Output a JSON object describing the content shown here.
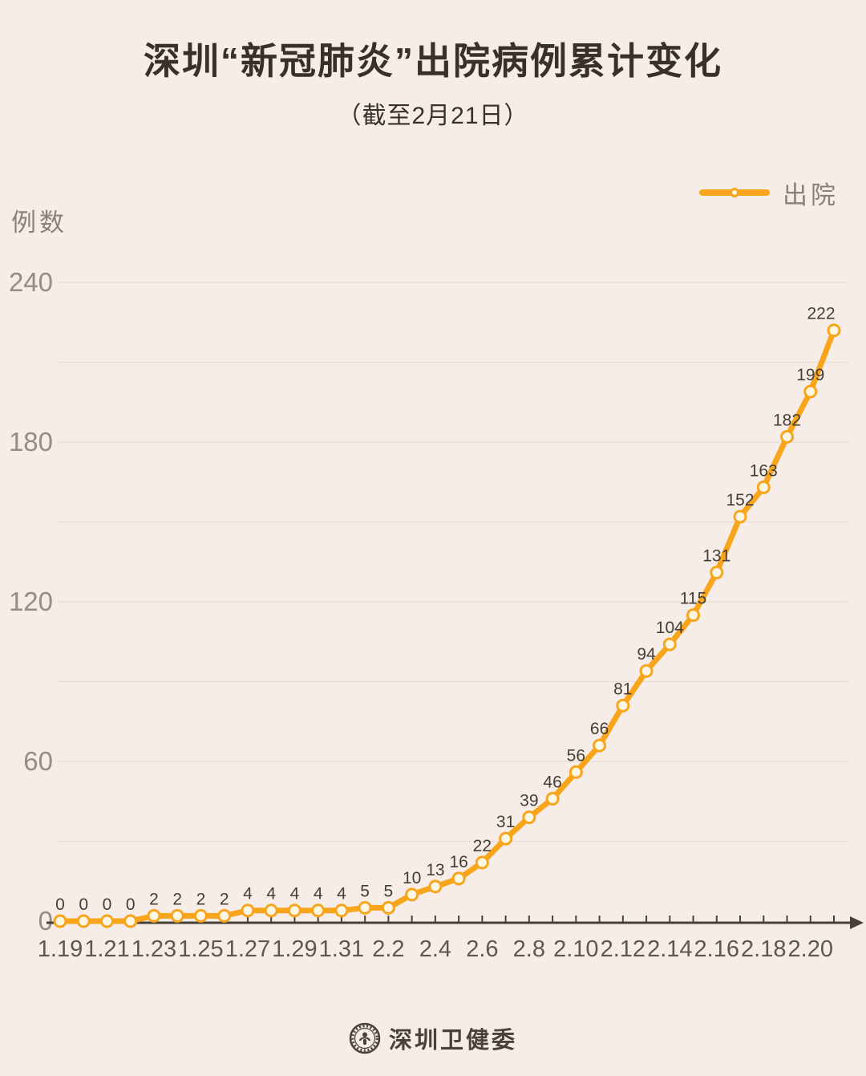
{
  "header": {
    "title": "深圳“新冠肺炎”出院病例累计变化",
    "subtitle": "（截至2月21日）"
  },
  "legend": {
    "label": "出院"
  },
  "footer": {
    "source": "深圳卫健委"
  },
  "colors": {
    "background": "#f7ede8",
    "line": "#f9a51b",
    "marker_fill": "#fdf6e3",
    "grid": "#e9ded8",
    "axis": "#48413a",
    "title_text": "#38312b",
    "x_tick_text": "#5f574f",
    "y_tick_text": "#958c84",
    "value_text": "#453e37",
    "legend_text": "#8a8178",
    "footer_text": "#4a423a"
  },
  "chart_data": {
    "type": "line",
    "title": "深圳“新冠肺炎”出院病例累计变化",
    "subtitle": "（截至2月21日）",
    "ylabel": "例数",
    "xlabel": "",
    "series_name": "出院",
    "x": [
      "1.19",
      "1.20",
      "1.21",
      "1.22",
      "1.23",
      "1.24",
      "1.25",
      "1.26",
      "1.27",
      "1.28",
      "1.29",
      "1.30",
      "1.31",
      "2.1",
      "2.2",
      "2.3",
      "2.4",
      "2.5",
      "2.6",
      "2.7",
      "2.8",
      "2.9",
      "2.10",
      "2.11",
      "2.12",
      "2.13",
      "2.14",
      "2.15",
      "2.16",
      "2.17",
      "2.18",
      "2.19",
      "2.20",
      "2.21"
    ],
    "values": [
      0,
      0,
      0,
      0,
      2,
      2,
      2,
      2,
      4,
      4,
      4,
      4,
      4,
      5,
      5,
      10,
      13,
      16,
      22,
      31,
      39,
      46,
      56,
      66,
      81,
      94,
      104,
      115,
      131,
      152,
      163,
      182,
      199,
      222
    ],
    "x_tick_labels_shown": [
      "1.19",
      "1.21",
      "1.23",
      "1.25",
      "1.27",
      "1.29",
      "1.31",
      "2.2",
      "2.4",
      "2.6",
      "2.8",
      "2.10",
      "2.12",
      "2.14",
      "2.16",
      "2.18",
      "2.20"
    ],
    "y_ticks_labeled": [
      0,
      60,
      120,
      180,
      240
    ],
    "grid_step": 30,
    "ylim": [
      0,
      240
    ],
    "grid": true,
    "legend_position": "top-right",
    "point_labels_shown": true
  }
}
